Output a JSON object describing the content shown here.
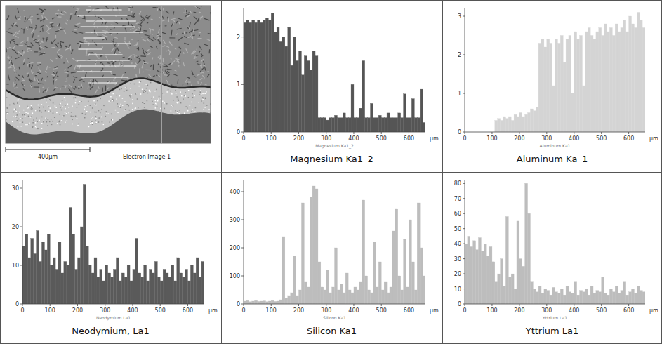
{
  "image_panel": {
    "scale_bar": "400µm",
    "caption": "Electron Image 1"
  },
  "chart_data": [
    {
      "type": "bar",
      "title": "Magnesium Ka1_2",
      "annotations": [
        "Magnesium Ka1_2"
      ],
      "x_label": "µm",
      "color": "#555555",
      "x": [
        0,
        10,
        20,
        30,
        40,
        50,
        60,
        70,
        80,
        90,
        100,
        110,
        120,
        130,
        140,
        150,
        160,
        170,
        180,
        190,
        200,
        210,
        220,
        230,
        240,
        250,
        260,
        270,
        280,
        290,
        300,
        310,
        320,
        330,
        340,
        350,
        360,
        370,
        380,
        390,
        400,
        410,
        420,
        430,
        440,
        450,
        460,
        470,
        480,
        490,
        500,
        510,
        520,
        530,
        540,
        550,
        560,
        570,
        580,
        590,
        600,
        610,
        620,
        630,
        640,
        650
      ],
      "values": [
        2.3,
        2.35,
        2.3,
        2.35,
        2.3,
        2.35,
        2.3,
        2.35,
        2.4,
        2.35,
        2.5,
        2.1,
        2.2,
        1.9,
        2.0,
        1.8,
        2.2,
        1.4,
        2.0,
        1.5,
        1.7,
        1.2,
        1.6,
        1.5,
        1.3,
        1.7,
        1.6,
        0.3,
        0.3,
        0.3,
        0.25,
        0.3,
        0.3,
        0.35,
        0.3,
        0.3,
        0.4,
        0.3,
        0.3,
        1.0,
        0.3,
        0.3,
        0.5,
        1.5,
        0.3,
        0.3,
        0.6,
        0.3,
        0.3,
        0.35,
        0.3,
        0.3,
        0.4,
        0.3,
        0.3,
        0.3,
        0.4,
        0.3,
        0.8,
        0.3,
        0.3,
        0.7,
        0.3,
        0.3,
        0.9,
        0.2
      ],
      "xlim": [
        0,
        660
      ],
      "xticks": [
        0,
        100,
        200,
        300,
        400,
        500,
        600
      ],
      "ylim": [
        0,
        2.6
      ],
      "yticks": [
        0,
        1,
        2
      ]
    },
    {
      "type": "bar",
      "title": "Aluminum Ka_1",
      "annotations": [
        "Aluminum Ka1"
      ],
      "x_label": "µm",
      "color": "#d4d4d4",
      "x": [
        0,
        10,
        20,
        30,
        40,
        50,
        60,
        70,
        80,
        90,
        100,
        110,
        120,
        130,
        140,
        150,
        160,
        170,
        180,
        190,
        200,
        210,
        220,
        230,
        240,
        250,
        260,
        270,
        280,
        290,
        300,
        310,
        320,
        330,
        340,
        350,
        360,
        370,
        380,
        390,
        400,
        410,
        420,
        430,
        440,
        450,
        460,
        470,
        480,
        490,
        500,
        510,
        520,
        530,
        540,
        550,
        560,
        570,
        580,
        590,
        600,
        610,
        620,
        630,
        640,
        650
      ],
      "values": [
        0,
        0,
        0,
        0,
        0,
        0,
        0,
        0,
        0,
        0,
        0,
        0.3,
        0.35,
        0.3,
        0.4,
        0.35,
        0.4,
        0.3,
        0.45,
        0.4,
        0.5,
        0.4,
        0.45,
        0.5,
        0.6,
        0.55,
        0.65,
        2.3,
        2.4,
        2.2,
        2.4,
        2.3,
        1.2,
        2.4,
        2.3,
        2.5,
        1.8,
        2.4,
        2.5,
        1.0,
        2.6,
        2.4,
        2.5,
        1.2,
        2.6,
        2.7,
        2.5,
        2.4,
        2.6,
        2.7,
        2.5,
        2.8,
        2.6,
        2.7,
        2.5,
        2.8,
        2.6,
        2.7,
        2.9,
        2.6,
        3.0,
        2.8,
        2.7,
        3.1,
        2.9,
        2.7
      ],
      "xlim": [
        0,
        660
      ],
      "xticks": [
        0,
        100,
        200,
        300,
        400,
        500,
        600
      ],
      "ylim": [
        0,
        3.2
      ],
      "yticks": [
        0,
        1,
        2,
        3
      ]
    },
    {
      "type": "bar",
      "title": "Neodymium, La1",
      "annotations": [
        "Neodymium La1"
      ],
      "x_label": "µm",
      "color": "#5a5a5a",
      "x": [
        0,
        10,
        20,
        30,
        40,
        50,
        60,
        70,
        80,
        90,
        100,
        110,
        120,
        130,
        140,
        150,
        160,
        170,
        180,
        190,
        200,
        210,
        220,
        230,
        240,
        250,
        260,
        270,
        280,
        290,
        300,
        310,
        320,
        330,
        340,
        350,
        360,
        370,
        380,
        390,
        400,
        410,
        420,
        430,
        440,
        450,
        460,
        470,
        480,
        490,
        500,
        510,
        520,
        530,
        540,
        550,
        560,
        570,
        580,
        590,
        600,
        610,
        620,
        630,
        640,
        650
      ],
      "values": [
        15,
        18,
        12,
        17,
        13,
        19,
        11,
        16,
        14,
        18,
        10,
        12,
        9,
        16,
        8,
        11,
        10,
        25,
        18,
        9,
        12,
        20,
        31,
        15,
        10,
        8,
        12,
        7,
        9,
        6,
        10,
        8,
        7,
        9,
        12,
        6,
        8,
        7,
        10,
        6,
        9,
        17,
        8,
        7,
        10,
        6,
        9,
        8,
        11,
        7,
        6,
        9,
        8,
        7,
        10,
        6,
        12,
        8,
        7,
        9,
        6,
        10,
        8,
        12,
        7,
        11
      ],
      "xlim": [
        0,
        660
      ],
      "xticks": [
        0,
        100,
        200,
        300,
        400,
        500,
        600
      ],
      "ylim": [
        0,
        32
      ],
      "yticks": [
        0,
        10,
        20,
        30
      ]
    },
    {
      "type": "bar",
      "title": "Silicon Ka1",
      "annotations": [
        "Silicon Ka1"
      ],
      "x_label": "µm",
      "color": "#bdbdbd",
      "x": [
        0,
        10,
        20,
        30,
        40,
        50,
        60,
        70,
        80,
        90,
        100,
        110,
        120,
        130,
        140,
        150,
        160,
        170,
        180,
        190,
        200,
        210,
        220,
        230,
        240,
        250,
        260,
        270,
        280,
        290,
        300,
        310,
        320,
        330,
        340,
        350,
        360,
        370,
        380,
        390,
        400,
        410,
        420,
        430,
        440,
        450,
        460,
        470,
        480,
        490,
        500,
        510,
        520,
        530,
        540,
        550,
        560,
        570,
        580,
        590,
        600,
        610,
        620,
        630,
        640,
        650
      ],
      "values": [
        10,
        12,
        8,
        10,
        12,
        9,
        10,
        11,
        8,
        10,
        12,
        9,
        10,
        15,
        240,
        20,
        30,
        40,
        170,
        30,
        50,
        360,
        80,
        60,
        380,
        420,
        410,
        150,
        60,
        50,
        120,
        40,
        60,
        200,
        50,
        70,
        40,
        110,
        50,
        40,
        60,
        50,
        80,
        370,
        100,
        50,
        40,
        220,
        60,
        150,
        50,
        80,
        40,
        60,
        260,
        340,
        100,
        50,
        230,
        60,
        300,
        150,
        50,
        360,
        200,
        100
      ],
      "xlim": [
        0,
        660
      ],
      "xticks": [
        0,
        100,
        200,
        300,
        400,
        500,
        600
      ],
      "ylim": [
        0,
        440
      ],
      "yticks": [
        0,
        100,
        200,
        300,
        400
      ]
    },
    {
      "type": "bar",
      "title": "Yttrium La1",
      "annotations": [
        "Yttrium La1"
      ],
      "x_label": "µm",
      "color": "#bdbdbd",
      "x": [
        0,
        10,
        20,
        30,
        40,
        50,
        60,
        70,
        80,
        90,
        100,
        110,
        120,
        130,
        140,
        150,
        160,
        170,
        180,
        190,
        200,
        210,
        220,
        230,
        240,
        250,
        260,
        270,
        280,
        290,
        300,
        310,
        320,
        330,
        340,
        350,
        360,
        370,
        380,
        390,
        400,
        410,
        420,
        430,
        440,
        450,
        460,
        470,
        480,
        490,
        500,
        510,
        520,
        530,
        540,
        550,
        560,
        570,
        580,
        590,
        600,
        610,
        620,
        630,
        640,
        650
      ],
      "values": [
        40,
        45,
        38,
        42,
        36,
        44,
        35,
        40,
        32,
        38,
        28,
        15,
        20,
        30,
        12,
        58,
        18,
        20,
        10,
        55,
        30,
        25,
        80,
        60,
        15,
        10,
        8,
        12,
        7,
        10,
        9,
        6,
        11,
        8,
        7,
        10,
        6,
        12,
        8,
        7,
        15,
        6,
        9,
        8,
        10,
        6,
        12,
        7,
        9,
        8,
        18,
        7,
        6,
        10,
        8,
        12,
        7,
        9,
        15,
        6,
        8,
        10,
        7,
        12,
        9,
        8
      ],
      "xlim": [
        0,
        660
      ],
      "xticks": [
        0,
        100,
        200,
        300,
        400,
        500,
        600
      ],
      "ylim": [
        0,
        82
      ],
      "yticks": [
        0,
        10,
        20,
        30,
        40,
        50,
        60,
        70,
        80
      ]
    }
  ]
}
